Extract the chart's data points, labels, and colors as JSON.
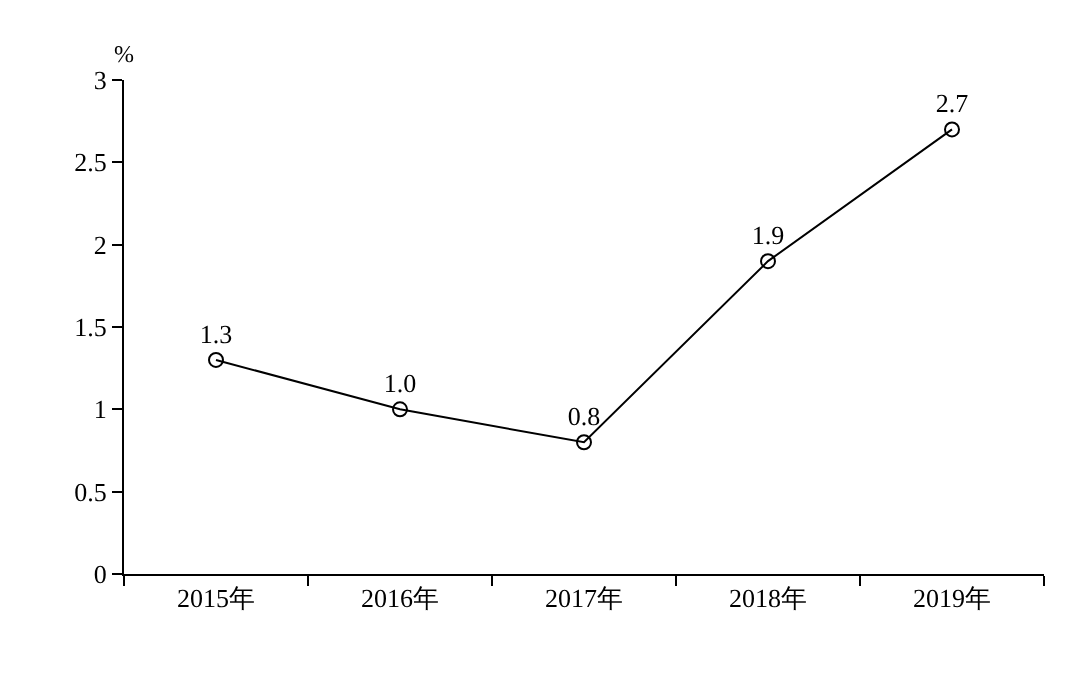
{
  "chart_data": {
    "type": "line",
    "ylabel": "%",
    "categories": [
      "2015年",
      "2016年",
      "2017年",
      "2018年",
      "2019年"
    ],
    "series": [
      {
        "color": "#000000",
        "values": [
          1.3,
          1.0,
          0.8,
          1.9,
          2.7
        ],
        "value_labels": [
          "1.3",
          "1.0",
          "0.8",
          "1.9",
          "2.7"
        ]
      }
    ],
    "ylim": [
      0,
      3
    ],
    "yticks": [
      0,
      0.5,
      1,
      1.5,
      2,
      2.5,
      3
    ],
    "marker": "circle",
    "line_style": "solid"
  }
}
